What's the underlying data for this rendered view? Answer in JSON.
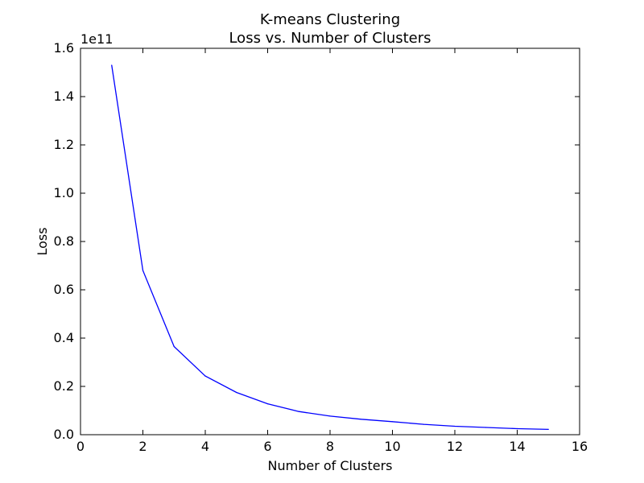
{
  "chart_data": {
    "type": "line",
    "title_line1": "K-means Clustering",
    "title_line2": "Loss vs. Number of Clusters",
    "xlabel": "Number of Clusters",
    "ylabel": "Loss",
    "y_offset_label": "1e11",
    "xlim": [
      0,
      16
    ],
    "ylim": [
      0.0,
      1.6
    ],
    "x_ticks": [
      "0",
      "2",
      "4",
      "6",
      "8",
      "10",
      "12",
      "14",
      "16"
    ],
    "y_ticks": [
      "0.0",
      "0.2",
      "0.4",
      "0.6",
      "0.8",
      "1.0",
      "1.2",
      "1.4",
      "1.6"
    ],
    "grid": false,
    "series": [
      {
        "color": "#0000ff",
        "x": [
          1,
          2,
          3,
          4,
          5,
          6,
          7,
          8,
          9,
          10,
          11,
          12,
          13,
          14,
          15
        ],
        "y": [
          1.53,
          0.68,
          0.365,
          0.243,
          0.175,
          0.128,
          0.096,
          0.077,
          0.064,
          0.054,
          0.043,
          0.035,
          0.03,
          0.025,
          0.022
        ]
      }
    ]
  }
}
